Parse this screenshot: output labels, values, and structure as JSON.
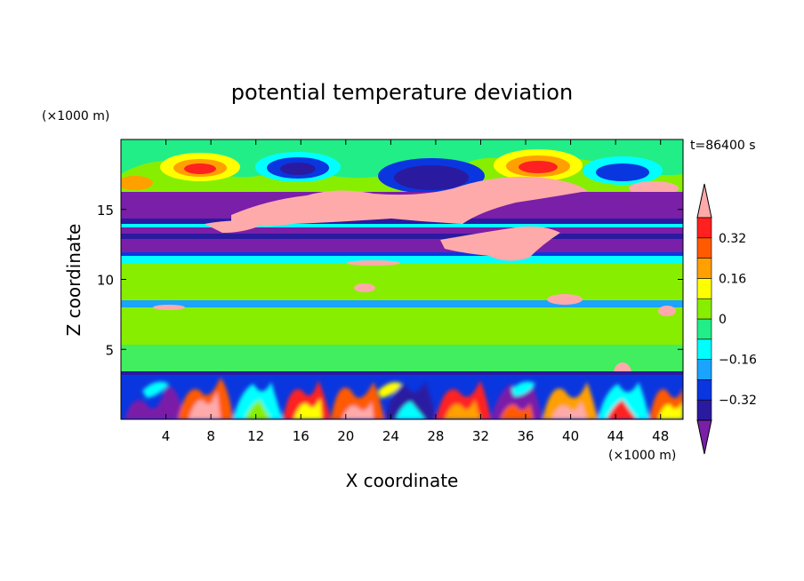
{
  "chart_data": {
    "type": "heatmap",
    "title": "potential temperature deviation",
    "xlabel": "X coordinate",
    "ylabel": "Z coordinate",
    "x_unit": "(×1000 m)",
    "z_unit": "(×1000 m)",
    "time_label": "t=86400 s",
    "xlim": [
      0,
      50
    ],
    "zlim": [
      0,
      20
    ],
    "x_ticks": [
      4,
      8,
      12,
      16,
      20,
      24,
      28,
      32,
      36,
      40,
      44,
      48
    ],
    "x_tick_labels": [
      "4",
      "8",
      "12",
      "16",
      "20",
      "24",
      "28",
      "32",
      "36",
      "40",
      "44",
      "48"
    ],
    "z_ticks": [
      5,
      10,
      15
    ],
    "z_tick_labels": [
      "5",
      "10",
      "15"
    ],
    "colorbar": {
      "levels": [
        -0.4,
        -0.32,
        -0.24,
        -0.16,
        -0.08,
        0,
        0.08,
        0.16,
        0.24,
        0.32,
        0.4
      ],
      "tick_values": [
        -0.32,
        -0.16,
        0,
        0.16,
        0.32
      ],
      "tick_labels": [
        "−0.32",
        "−0.16",
        "0",
        "0.16",
        "0.32"
      ],
      "colors": [
        "#7a1fa8",
        "#2a1aa0",
        "#0a36e0",
        "#1aa4ff",
        "#00ffff",
        "#22ee88",
        "#88ee00",
        "#ffff00",
        "#ffa000",
        "#ff5a00",
        "#ff2020",
        "#ffaaaa"
      ],
      "extend": "both"
    },
    "layers": [
      {
        "z_range": [
          0,
          3.5
        ],
        "pattern": "turbulent boundary layer, mixed −0.4 to 0.4"
      },
      {
        "z_range": [
          3.5,
          11.5
        ],
        "value": 0.02
      },
      {
        "z_range": [
          11.5,
          15.5
        ],
        "value": -0.36
      },
      {
        "z_range": [
          15.5,
          20
        ],
        "value": 0.05
      }
    ]
  }
}
